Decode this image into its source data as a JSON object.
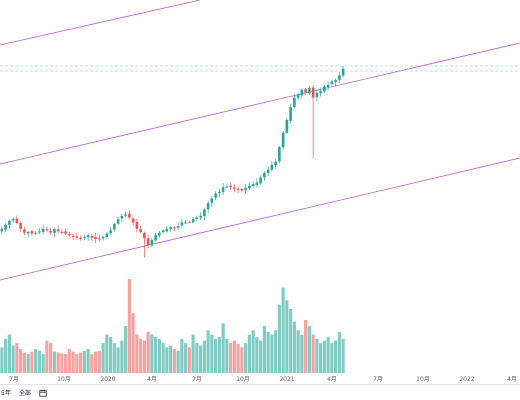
{
  "chart_data": [
    {
      "type": "candlestick",
      "price_scale": "unlabeled",
      "grid": false,
      "colors": {
        "up": "#26a69a",
        "down": "#ef5350",
        "volume_up": "#80cbc4",
        "volume_down": "#f4a3a1",
        "channel": "#b65fd6",
        "level": "#76c7b7"
      },
      "x_tick_labels": [
        "7月",
        "10月",
        "2020",
        "4月",
        "7月",
        "10月",
        "2021",
        "4月",
        "7月",
        "10月",
        "2022",
        "4月"
      ],
      "close_approx": [
        560,
        572,
        585,
        590,
        578,
        560,
        548,
        550,
        545,
        548,
        552,
        560,
        555,
        548,
        560,
        552,
        550,
        545,
        540,
        535,
        532,
        530,
        535,
        540,
        532,
        528,
        530,
        535,
        545,
        555,
        575,
        590,
        600,
        605,
        595,
        580,
        560,
        550,
        530,
        510,
        525,
        540,
        548,
        555,
        560,
        565,
        563,
        568,
        580,
        580,
        582,
        590,
        595,
        600,
        620,
        640,
        655,
        670,
        675,
        690,
        692,
        690,
        685,
        683,
        680,
        688,
        695,
        700,
        705,
        720,
        735,
        745,
        760,
        770,
        815,
        860,
        900,
        940,
        970,
        980,
        995,
        985,
        1000,
        970,
        985,
        990,
        1005,
        1010,
        1020,
        1025,
        1040,
        1060
      ],
      "volume_approx": [
        30,
        40,
        45,
        32,
        35,
        28,
        24,
        22,
        25,
        28,
        26,
        22,
        38,
        35,
        25,
        24,
        23,
        22,
        28,
        25,
        22,
        24,
        26,
        28,
        22,
        25,
        26,
        35,
        45,
        42,
        35,
        30,
        38,
        55,
        110,
        70,
        45,
        40,
        38,
        48,
        45,
        42,
        40,
        35,
        30,
        32,
        28,
        26,
        40,
        35,
        30,
        45,
        35,
        32,
        38,
        50,
        45,
        40,
        42,
        58,
        40,
        35,
        38,
        34,
        30,
        35,
        45,
        50,
        42,
        38,
        55,
        48,
        45,
        50,
        80,
        100,
        85,
        75,
        60,
        50,
        45,
        62,
        55,
        45,
        40,
        35,
        38,
        42,
        35,
        38,
        48,
        40
      ]
    }
  ],
  "bottom_toolbar": {
    "range_5y": "5年",
    "range_all": "全部",
    "date_range_icon": "calendar-icon"
  }
}
